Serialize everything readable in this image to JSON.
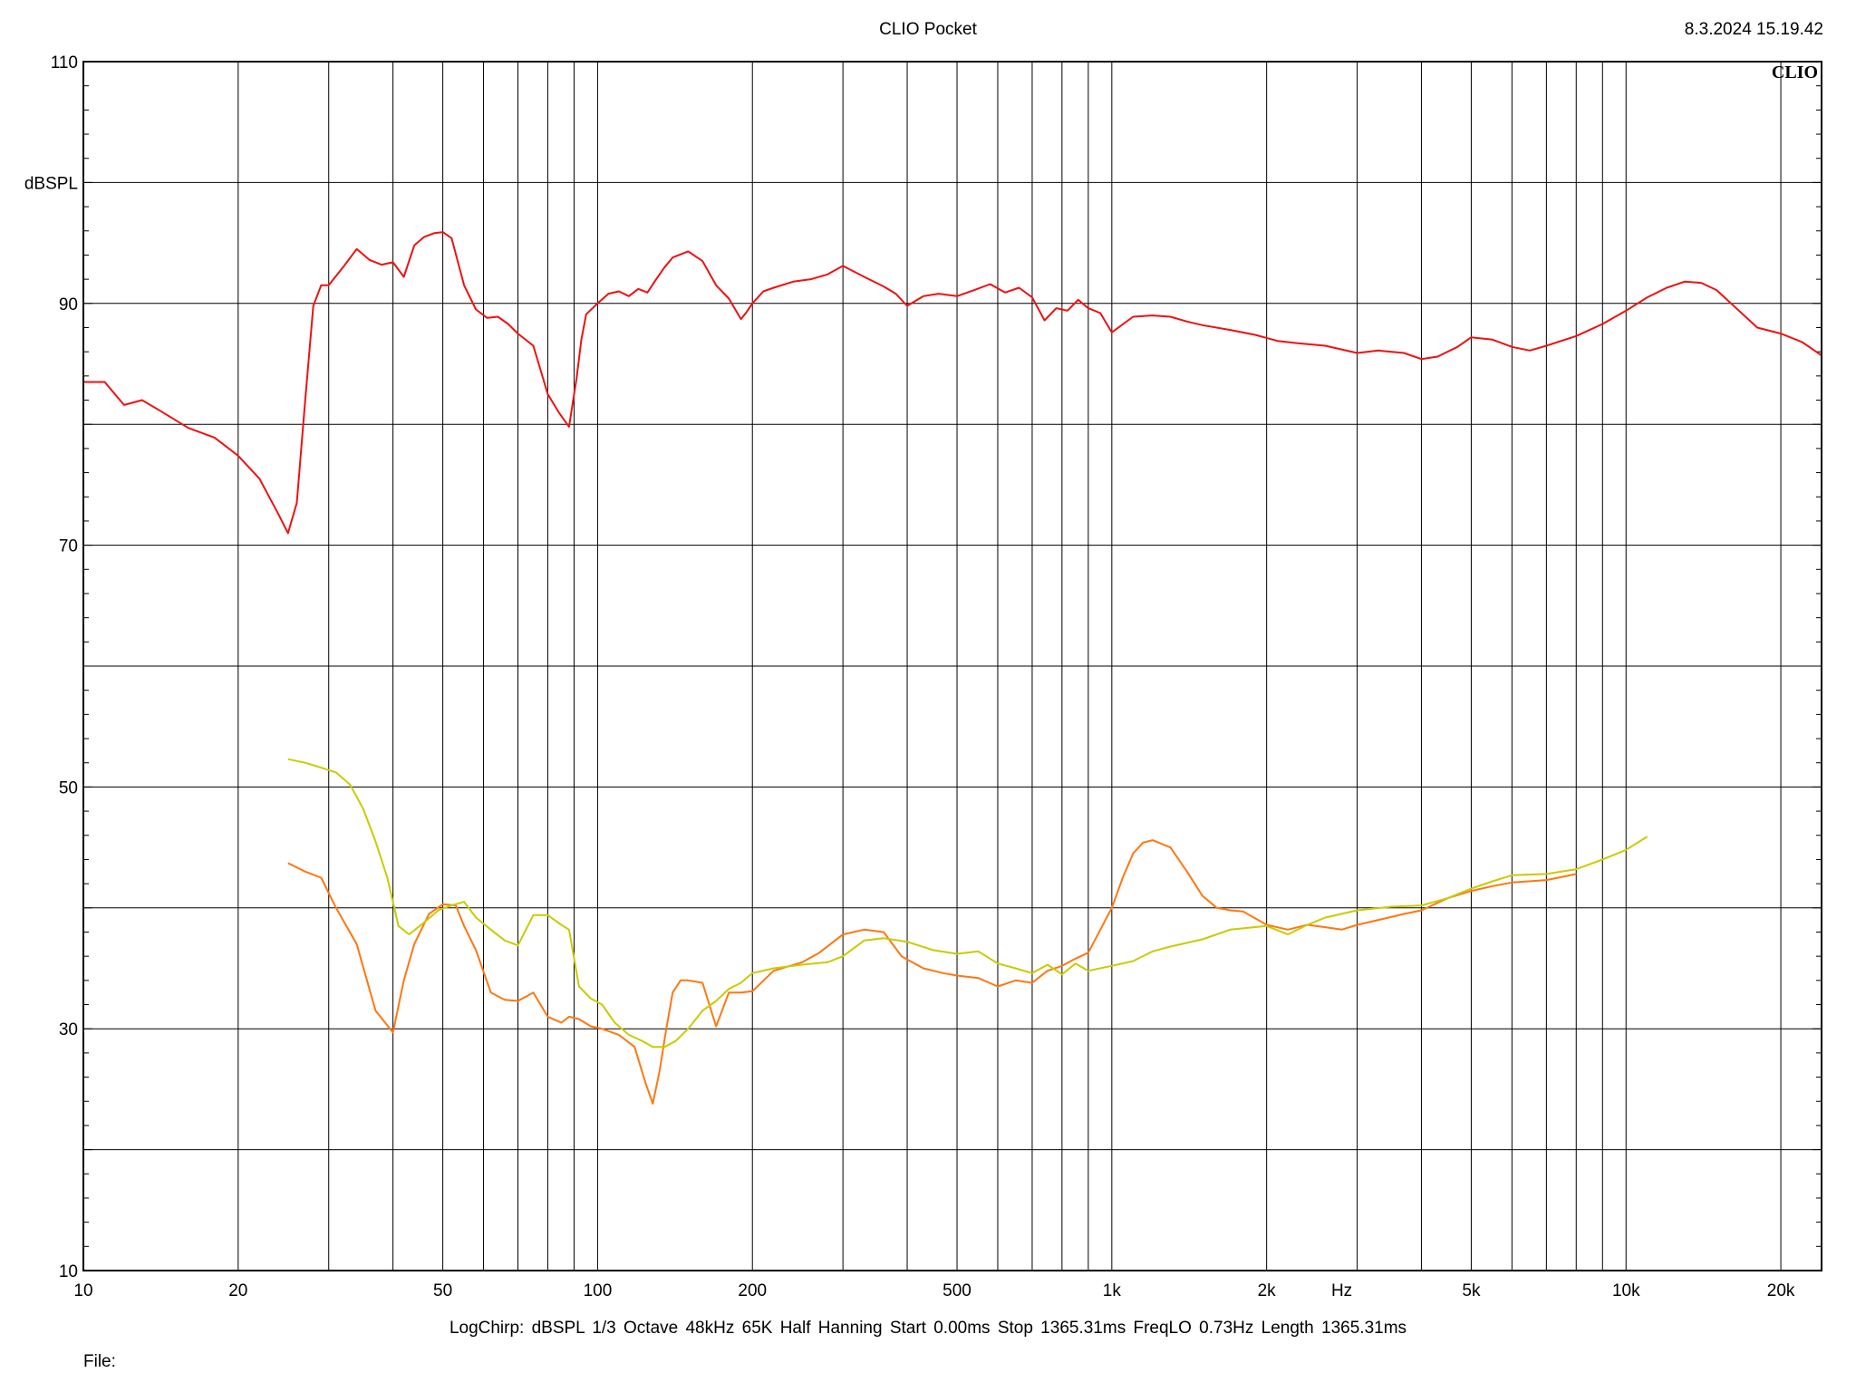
{
  "header": {
    "title": "CLIO Pocket",
    "timestamp": "8.3.2024 15.19.42",
    "brand": "CLIO"
  },
  "footer": {
    "settings": "LogChirp:  dBSPL   1/3 Octave   48kHz   65K   Half Hanning   Start 0.00ms    Stop 1365.31ms    FreqLO 0.73Hz    Length 1365.31ms",
    "file_label": "File:"
  },
  "chart_data": {
    "type": "line",
    "title": "CLIO Pocket",
    "xlabel": "Hz",
    "ylabel": "dBSPL",
    "xscale": "log",
    "xlim": [
      10,
      24000
    ],
    "ylim": [
      10,
      110
    ],
    "grid": true,
    "x_tick_labels": [
      {
        "value": 10,
        "label": "10"
      },
      {
        "value": 20,
        "label": "20"
      },
      {
        "value": 50,
        "label": "50"
      },
      {
        "value": 100,
        "label": "100"
      },
      {
        "value": 200,
        "label": "200"
      },
      {
        "value": 500,
        "label": "500"
      },
      {
        "value": 1000,
        "label": "1k"
      },
      {
        "value": 2000,
        "label": "2k"
      },
      {
        "value": 5000,
        "label": "5k"
      },
      {
        "value": 10000,
        "label": "10k"
      },
      {
        "value": 20000,
        "label": "20k"
      }
    ],
    "y_tick_labels": [
      {
        "value": 10,
        "label": "10"
      },
      {
        "value": 30,
        "label": "30"
      },
      {
        "value": 50,
        "label": "50"
      },
      {
        "value": 70,
        "label": "70"
      },
      {
        "value": 90,
        "label": "90"
      },
      {
        "value": 110,
        "label": "110"
      }
    ],
    "series": [
      {
        "color": "#ee1111",
        "x": [
          10,
          11,
          12,
          13,
          14,
          16,
          18,
          20,
          22,
          24,
          25,
          26,
          27,
          28,
          29,
          30,
          32,
          34,
          36,
          38,
          40,
          42,
          44,
          46,
          48,
          50,
          52,
          55,
          58,
          61,
          64,
          67,
          70,
          75,
          80,
          84,
          88,
          91,
          93,
          95,
          100,
          105,
          110,
          115,
          120,
          125,
          130,
          135,
          140,
          150,
          160,
          170,
          180,
          190,
          195,
          200,
          210,
          220,
          240,
          260,
          280,
          300,
          330,
          360,
          380,
          400,
          430,
          460,
          500,
          540,
          580,
          620,
          660,
          700,
          740,
          780,
          820,
          860,
          900,
          950,
          1000,
          1100,
          1200,
          1300,
          1400,
          1500,
          1700,
          1900,
          2100,
          2300,
          2600,
          3000,
          3300,
          3700,
          4000,
          4300,
          4700,
          5000,
          5500,
          6000,
          6500,
          7000,
          8000,
          9000,
          10000,
          11000,
          12000,
          13000,
          14000,
          15000,
          16000,
          18000,
          20000,
          22000,
          24000
        ],
        "y": [
          83.5,
          83.5,
          81.6,
          82.0,
          81.2,
          79.7,
          78.9,
          77.4,
          75.5,
          72.5,
          71.0,
          73.5,
          82.0,
          89.8,
          91.5,
          91.5,
          93.0,
          94.5,
          93.6,
          93.2,
          93.4,
          92.2,
          94.8,
          95.5,
          95.8,
          95.9,
          95.4,
          91.5,
          89.5,
          88.8,
          88.9,
          88.3,
          87.5,
          86.5,
          82.5,
          81.0,
          79.8,
          83.8,
          87.0,
          89.1,
          90.0,
          90.8,
          91.0,
          90.6,
          91.2,
          90.9,
          92.0,
          93.0,
          93.8,
          94.3,
          93.5,
          91.5,
          90.4,
          88.7,
          89.3,
          90.0,
          91.0,
          91.3,
          91.8,
          92.0,
          92.4,
          93.1,
          92.2,
          91.4,
          90.8,
          89.8,
          90.6,
          90.8,
          90.6,
          91.1,
          91.6,
          90.9,
          91.3,
          90.5,
          88.6,
          89.6,
          89.4,
          90.3,
          89.6,
          89.2,
          87.6,
          88.9,
          89.0,
          88.9,
          88.5,
          88.2,
          87.8,
          87.4,
          86.9,
          86.7,
          86.5,
          85.9,
          86.1,
          85.9,
          85.4,
          85.6,
          86.4,
          87.2,
          87.0,
          86.4,
          86.1,
          86.5,
          87.3,
          88.3,
          89.4,
          90.5,
          91.3,
          91.8,
          91.7,
          91.1,
          90.0,
          88.0,
          87.5,
          86.8,
          85.7
        ]
      },
      {
        "color": "#ff7711",
        "x": [
          25,
          27,
          29,
          31,
          34,
          37,
          40,
          42,
          44,
          47,
          50,
          53,
          55,
          58,
          62,
          66,
          70,
          75,
          80,
          85,
          88,
          92,
          97,
          102,
          110,
          118,
          124,
          128,
          132,
          136,
          140,
          145,
          150,
          160,
          170,
          180,
          190,
          200,
          220,
          250,
          270,
          300,
          330,
          360,
          390,
          430,
          470,
          500,
          550,
          600,
          650,
          700,
          750,
          800,
          850,
          900,
          950,
          1000,
          1050,
          1100,
          1150,
          1200,
          1300,
          1400,
          1500,
          1600,
          1700,
          1800,
          2000,
          2200,
          2400,
          2600,
          2800,
          3000,
          3300,
          3700,
          4000,
          4500,
          5000,
          5500,
          6000,
          7000,
          8000
        ],
        "y": [
          43.7,
          43.0,
          42.5,
          40.0,
          37.0,
          31.5,
          29.7,
          34.0,
          37.0,
          39.5,
          40.3,
          40.2,
          38.5,
          36.5,
          33.0,
          32.4,
          32.3,
          33.0,
          31.0,
          30.5,
          31.0,
          30.8,
          30.2,
          30.0,
          29.5,
          28.5,
          25.5,
          23.8,
          26.5,
          30.0,
          33.0,
          34.0,
          34.0,
          33.8,
          30.2,
          33.0,
          33.0,
          33.1,
          34.8,
          35.5,
          36.3,
          37.8,
          38.2,
          38.0,
          36.0,
          35.0,
          34.6,
          34.4,
          34.2,
          33.5,
          34.0,
          33.8,
          34.8,
          35.2,
          35.8,
          36.3,
          38.2,
          40.0,
          42.5,
          44.5,
          45.4,
          45.6,
          45.0,
          43.0,
          41.0,
          40.0,
          39.8,
          39.7,
          38.6,
          38.2,
          38.6,
          38.4,
          38.2,
          38.6,
          39.0,
          39.5,
          39.8,
          40.8,
          41.4,
          41.8,
          42.1,
          42.3,
          42.8
        ]
      },
      {
        "color": "#c8cc00",
        "x": [
          25,
          27,
          29,
          31,
          33,
          35,
          37,
          39,
          41,
          43,
          46,
          49,
          52,
          55,
          58,
          62,
          66,
          70,
          75,
          80,
          85,
          88,
          92,
          97,
          102,
          108,
          115,
          122,
          128,
          135,
          142,
          150,
          160,
          170,
          180,
          190,
          200,
          220,
          250,
          280,
          300,
          330,
          360,
          400,
          450,
          500,
          550,
          600,
          650,
          700,
          750,
          800,
          850,
          900,
          1000,
          1100,
          1200,
          1300,
          1500,
          1700,
          2000,
          2200,
          2400,
          2600,
          3000,
          3500,
          4000,
          4500,
          5000,
          5500,
          6000,
          7000,
          8000,
          9000,
          10000,
          11000
        ],
        "y": [
          52.3,
          52.0,
          51.6,
          51.2,
          50.2,
          48.2,
          45.5,
          42.5,
          38.5,
          37.8,
          38.8,
          39.8,
          40.2,
          40.5,
          39.2,
          38.2,
          37.3,
          36.9,
          39.4,
          39.4,
          38.6,
          38.2,
          33.5,
          32.5,
          32.0,
          30.5,
          29.5,
          29.0,
          28.5,
          28.5,
          29.0,
          30.0,
          31.5,
          32.3,
          33.3,
          33.8,
          34.6,
          35.0,
          35.3,
          35.5,
          36.0,
          37.3,
          37.5,
          37.2,
          36.5,
          36.2,
          36.4,
          35.4,
          35.0,
          34.6,
          35.3,
          34.5,
          35.4,
          34.8,
          35.2,
          35.6,
          36.4,
          36.8,
          37.4,
          38.2,
          38.5,
          37.8,
          38.6,
          39.2,
          39.8,
          40.1,
          40.2,
          40.8,
          41.6,
          42.2,
          42.7,
          42.8,
          43.2,
          44.0,
          44.8,
          45.9
        ]
      }
    ]
  }
}
